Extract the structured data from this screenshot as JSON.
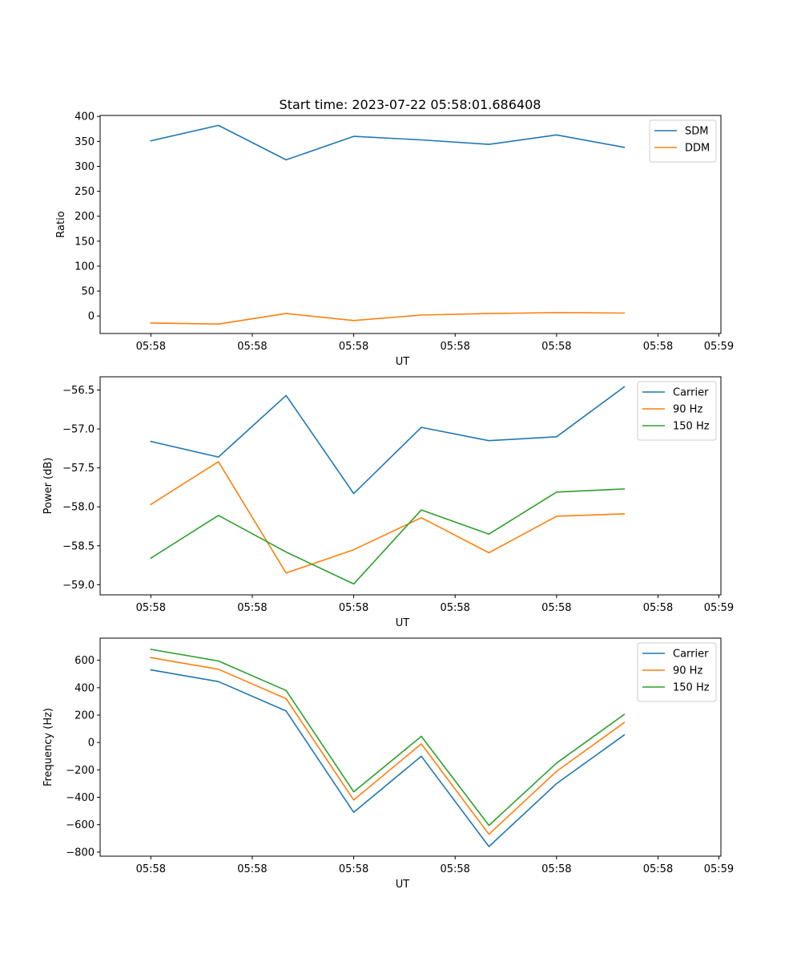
{
  "figure": {
    "title": "Start time: 2023-07-22 05:58:01.686408"
  },
  "x_ticks": [
    "05:58",
    "05:58",
    "05:58",
    "05:58",
    "05:58",
    "05:58",
    "05:58"
  ],
  "x_last_tick": "05:59",
  "chart_data": [
    {
      "type": "line",
      "title": "Start time: 2023-07-22 05:58:01.686408",
      "xlabel": "UT",
      "ylabel": "Ratio",
      "x": [
        1,
        2,
        3,
        4,
        5,
        6,
        7,
        8
      ],
      "xlim": [
        0.25,
        9.43
      ],
      "ylim": [
        -35,
        402
      ],
      "yticks": [
        0,
        50,
        100,
        150,
        200,
        250,
        300,
        350,
        400
      ],
      "ytick_labels": [
        "0",
        "50",
        "100",
        "150",
        "200",
        "250",
        "300",
        "350",
        "400"
      ],
      "legend": "upper right",
      "series": [
        {
          "name": "SDM",
          "color": "#1f77b4",
          "values": [
            351,
            382,
            313,
            360,
            353,
            344,
            363,
            338
          ]
        },
        {
          "name": "DDM",
          "color": "#ff7f0e",
          "values": [
            -14,
            -16,
            5,
            -9,
            2,
            5,
            7,
            6
          ]
        }
      ]
    },
    {
      "type": "line",
      "xlabel": "UT",
      "ylabel": "Power (dB)",
      "x": [
        1,
        2,
        3,
        4,
        5,
        6,
        7,
        8
      ],
      "xlim": [
        0.25,
        9.43
      ],
      "ylim": [
        -59.13,
        -56.33
      ],
      "yticks": [
        -59.0,
        -58.5,
        -58.0,
        -57.5,
        -57.0,
        -56.5
      ],
      "ytick_labels": [
        "−59.0",
        "−58.5",
        "−58.0",
        "−57.5",
        "−57.0",
        "−56.5"
      ],
      "legend": "upper right",
      "series": [
        {
          "name": "Carrier",
          "color": "#1f77b4",
          "values": [
            -57.16,
            -57.36,
            -56.57,
            -57.83,
            -56.98,
            -57.15,
            -57.1,
            -56.46
          ]
        },
        {
          "name": "90 Hz",
          "color": "#ff7f0e",
          "values": [
            -57.97,
            -57.42,
            -58.85,
            -58.55,
            -58.14,
            -58.59,
            -58.12,
            -58.09
          ]
        },
        {
          "name": "150 Hz",
          "color": "#2ca02c",
          "values": [
            -58.66,
            -58.11,
            -58.58,
            -58.99,
            -58.04,
            -58.35,
            -57.81,
            -57.77
          ]
        }
      ]
    },
    {
      "type": "line",
      "xlabel": "UT",
      "ylabel": "Frequency (Hz)",
      "x": [
        1,
        2,
        3,
        4,
        5,
        6,
        7,
        8
      ],
      "xlim": [
        0.25,
        9.43
      ],
      "ylim": [
        -830,
        762
      ],
      "yticks": [
        -800,
        -600,
        -400,
        -200,
        0,
        200,
        400,
        600
      ],
      "ytick_labels": [
        "−800",
        "−600",
        "−400",
        "−200",
        "0",
        "200",
        "400",
        "600"
      ],
      "legend": "upper right",
      "series": [
        {
          "name": "Carrier",
          "color": "#1f77b4",
          "values": [
            530,
            445,
            230,
            -510,
            -100,
            -760,
            -300,
            55
          ]
        },
        {
          "name": "90 Hz",
          "color": "#ff7f0e",
          "values": [
            620,
            535,
            320,
            -420,
            -10,
            -670,
            -210,
            145
          ]
        },
        {
          "name": "150 Hz",
          "color": "#2ca02c",
          "values": [
            680,
            595,
            380,
            -360,
            45,
            -605,
            -150,
            205
          ]
        }
      ]
    }
  ]
}
